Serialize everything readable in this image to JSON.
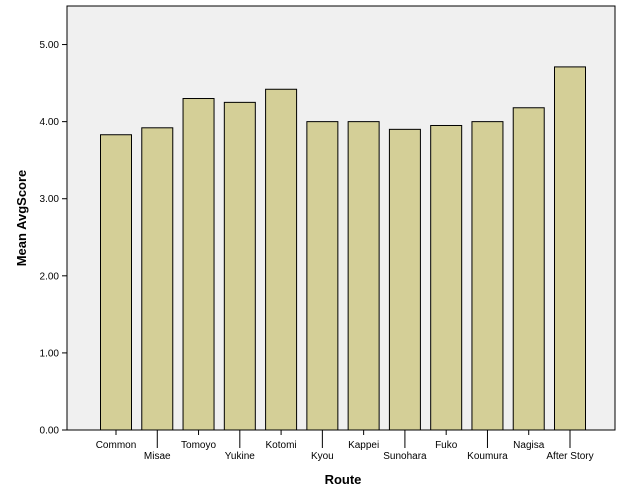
{
  "chart_data": {
    "type": "bar",
    "xlabel": "Route",
    "ylabel": "Mean AvgScore",
    "categories": [
      "Common",
      "Misae",
      "Tomoyo",
      "Yukine",
      "Kotomi",
      "Kyou",
      "Kappei",
      "Sunohara",
      "Fuko",
      "Koumura",
      "Nagisa",
      "After Story"
    ],
    "values": [
      3.83,
      3.92,
      4.3,
      4.25,
      4.42,
      4.0,
      4.0,
      3.9,
      3.95,
      4.0,
      4.18,
      4.71
    ],
    "ylim": [
      0,
      5.5
    ],
    "yticks": [
      "0.00",
      "1.00",
      "2.00",
      "3.00",
      "4.00",
      "5.00"
    ],
    "grid": false,
    "legend": "none",
    "colors": {
      "bar_fill": "#d4cf97",
      "bar_stroke": "#000000",
      "plot_background": "#f0f0f0"
    }
  }
}
